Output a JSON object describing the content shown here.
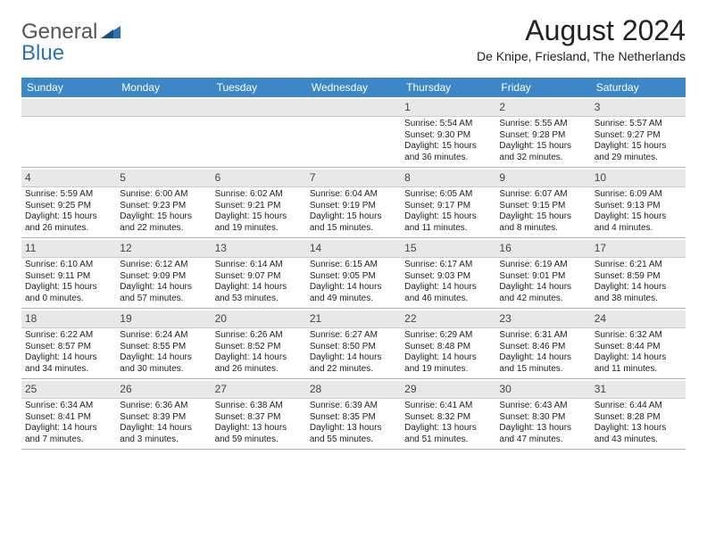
{
  "logo": {
    "part1": "General",
    "part2": "Blue"
  },
  "title": "August 2024",
  "subtitle": "De Knipe, Friesland, The Netherlands",
  "colors": {
    "header_bg": "#3b87c8",
    "header_text": "#ffffff",
    "daynum_bg": "#e8e8e8",
    "border": "#b0b0b0",
    "logo_gray": "#555555",
    "logo_blue": "#2d72b8"
  },
  "day_names": [
    "Sunday",
    "Monday",
    "Tuesday",
    "Wednesday",
    "Thursday",
    "Friday",
    "Saturday"
  ],
  "weeks": [
    [
      {
        "n": "",
        "sr": "",
        "ss": "",
        "d1": "",
        "d2": ""
      },
      {
        "n": "",
        "sr": "",
        "ss": "",
        "d1": "",
        "d2": ""
      },
      {
        "n": "",
        "sr": "",
        "ss": "",
        "d1": "",
        "d2": ""
      },
      {
        "n": "",
        "sr": "",
        "ss": "",
        "d1": "",
        "d2": ""
      },
      {
        "n": "1",
        "sr": "Sunrise: 5:54 AM",
        "ss": "Sunset: 9:30 PM",
        "d1": "Daylight: 15 hours",
        "d2": "and 36 minutes."
      },
      {
        "n": "2",
        "sr": "Sunrise: 5:55 AM",
        "ss": "Sunset: 9:28 PM",
        "d1": "Daylight: 15 hours",
        "d2": "and 32 minutes."
      },
      {
        "n": "3",
        "sr": "Sunrise: 5:57 AM",
        "ss": "Sunset: 9:27 PM",
        "d1": "Daylight: 15 hours",
        "d2": "and 29 minutes."
      }
    ],
    [
      {
        "n": "4",
        "sr": "Sunrise: 5:59 AM",
        "ss": "Sunset: 9:25 PM",
        "d1": "Daylight: 15 hours",
        "d2": "and 26 minutes."
      },
      {
        "n": "5",
        "sr": "Sunrise: 6:00 AM",
        "ss": "Sunset: 9:23 PM",
        "d1": "Daylight: 15 hours",
        "d2": "and 22 minutes."
      },
      {
        "n": "6",
        "sr": "Sunrise: 6:02 AM",
        "ss": "Sunset: 9:21 PM",
        "d1": "Daylight: 15 hours",
        "d2": "and 19 minutes."
      },
      {
        "n": "7",
        "sr": "Sunrise: 6:04 AM",
        "ss": "Sunset: 9:19 PM",
        "d1": "Daylight: 15 hours",
        "d2": "and 15 minutes."
      },
      {
        "n": "8",
        "sr": "Sunrise: 6:05 AM",
        "ss": "Sunset: 9:17 PM",
        "d1": "Daylight: 15 hours",
        "d2": "and 11 minutes."
      },
      {
        "n": "9",
        "sr": "Sunrise: 6:07 AM",
        "ss": "Sunset: 9:15 PM",
        "d1": "Daylight: 15 hours",
        "d2": "and 8 minutes."
      },
      {
        "n": "10",
        "sr": "Sunrise: 6:09 AM",
        "ss": "Sunset: 9:13 PM",
        "d1": "Daylight: 15 hours",
        "d2": "and 4 minutes."
      }
    ],
    [
      {
        "n": "11",
        "sr": "Sunrise: 6:10 AM",
        "ss": "Sunset: 9:11 PM",
        "d1": "Daylight: 15 hours",
        "d2": "and 0 minutes."
      },
      {
        "n": "12",
        "sr": "Sunrise: 6:12 AM",
        "ss": "Sunset: 9:09 PM",
        "d1": "Daylight: 14 hours",
        "d2": "and 57 minutes."
      },
      {
        "n": "13",
        "sr": "Sunrise: 6:14 AM",
        "ss": "Sunset: 9:07 PM",
        "d1": "Daylight: 14 hours",
        "d2": "and 53 minutes."
      },
      {
        "n": "14",
        "sr": "Sunrise: 6:15 AM",
        "ss": "Sunset: 9:05 PM",
        "d1": "Daylight: 14 hours",
        "d2": "and 49 minutes."
      },
      {
        "n": "15",
        "sr": "Sunrise: 6:17 AM",
        "ss": "Sunset: 9:03 PM",
        "d1": "Daylight: 14 hours",
        "d2": "and 46 minutes."
      },
      {
        "n": "16",
        "sr": "Sunrise: 6:19 AM",
        "ss": "Sunset: 9:01 PM",
        "d1": "Daylight: 14 hours",
        "d2": "and 42 minutes."
      },
      {
        "n": "17",
        "sr": "Sunrise: 6:21 AM",
        "ss": "Sunset: 8:59 PM",
        "d1": "Daylight: 14 hours",
        "d2": "and 38 minutes."
      }
    ],
    [
      {
        "n": "18",
        "sr": "Sunrise: 6:22 AM",
        "ss": "Sunset: 8:57 PM",
        "d1": "Daylight: 14 hours",
        "d2": "and 34 minutes."
      },
      {
        "n": "19",
        "sr": "Sunrise: 6:24 AM",
        "ss": "Sunset: 8:55 PM",
        "d1": "Daylight: 14 hours",
        "d2": "and 30 minutes."
      },
      {
        "n": "20",
        "sr": "Sunrise: 6:26 AM",
        "ss": "Sunset: 8:52 PM",
        "d1": "Daylight: 14 hours",
        "d2": "and 26 minutes."
      },
      {
        "n": "21",
        "sr": "Sunrise: 6:27 AM",
        "ss": "Sunset: 8:50 PM",
        "d1": "Daylight: 14 hours",
        "d2": "and 22 minutes."
      },
      {
        "n": "22",
        "sr": "Sunrise: 6:29 AM",
        "ss": "Sunset: 8:48 PM",
        "d1": "Daylight: 14 hours",
        "d2": "and 19 minutes."
      },
      {
        "n": "23",
        "sr": "Sunrise: 6:31 AM",
        "ss": "Sunset: 8:46 PM",
        "d1": "Daylight: 14 hours",
        "d2": "and 15 minutes."
      },
      {
        "n": "24",
        "sr": "Sunrise: 6:32 AM",
        "ss": "Sunset: 8:44 PM",
        "d1": "Daylight: 14 hours",
        "d2": "and 11 minutes."
      }
    ],
    [
      {
        "n": "25",
        "sr": "Sunrise: 6:34 AM",
        "ss": "Sunset: 8:41 PM",
        "d1": "Daylight: 14 hours",
        "d2": "and 7 minutes."
      },
      {
        "n": "26",
        "sr": "Sunrise: 6:36 AM",
        "ss": "Sunset: 8:39 PM",
        "d1": "Daylight: 14 hours",
        "d2": "and 3 minutes."
      },
      {
        "n": "27",
        "sr": "Sunrise: 6:38 AM",
        "ss": "Sunset: 8:37 PM",
        "d1": "Daylight: 13 hours",
        "d2": "and 59 minutes."
      },
      {
        "n": "28",
        "sr": "Sunrise: 6:39 AM",
        "ss": "Sunset: 8:35 PM",
        "d1": "Daylight: 13 hours",
        "d2": "and 55 minutes."
      },
      {
        "n": "29",
        "sr": "Sunrise: 6:41 AM",
        "ss": "Sunset: 8:32 PM",
        "d1": "Daylight: 13 hours",
        "d2": "and 51 minutes."
      },
      {
        "n": "30",
        "sr": "Sunrise: 6:43 AM",
        "ss": "Sunset: 8:30 PM",
        "d1": "Daylight: 13 hours",
        "d2": "and 47 minutes."
      },
      {
        "n": "31",
        "sr": "Sunrise: 6:44 AM",
        "ss": "Sunset: 8:28 PM",
        "d1": "Daylight: 13 hours",
        "d2": "and 43 minutes."
      }
    ]
  ]
}
